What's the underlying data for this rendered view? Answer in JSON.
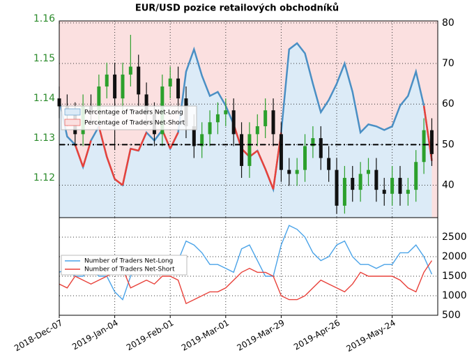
{
  "chart_data": [
    {
      "type": "candlestick",
      "title": "EUR/USD pozice retailových obchodníků",
      "x": [
        "2018-12-07",
        "2018-12-11",
        "2018-12-15",
        "2018-12-19",
        "2018-12-23",
        "2018-12-27",
        "2018-12-31",
        "2019-01-04",
        "2019-01-08",
        "2019-01-12",
        "2019-01-16",
        "2019-01-20",
        "2019-01-24",
        "2019-01-28",
        "2019-02-01",
        "2019-02-05",
        "2019-02-09",
        "2019-02-13",
        "2019-02-17",
        "2019-02-21",
        "2019-02-25",
        "2019-03-01",
        "2019-03-05",
        "2019-03-09",
        "2019-03-13",
        "2019-03-17",
        "2019-03-21",
        "2019-03-25",
        "2019-03-29",
        "2019-04-02",
        "2019-04-06",
        "2019-04-10",
        "2019-04-14",
        "2019-04-18",
        "2019-04-22",
        "2019-04-26",
        "2019-04-30",
        "2019-05-04",
        "2019-05-08",
        "2019-05-12",
        "2019-05-16",
        "2019-05-20",
        "2019-05-24",
        "2019-05-28",
        "2019-06-01",
        "2019-06-05",
        "2019-06-09",
        "2019-06-13"
      ],
      "open": [
        1.14,
        1.138,
        1.136,
        1.131,
        1.138,
        1.137,
        1.143,
        1.146,
        1.14,
        1.146,
        1.148,
        1.141,
        1.136,
        1.131,
        1.143,
        1.145,
        1.14,
        1.133,
        1.128,
        1.131,
        1.134,
        1.136,
        1.137,
        1.131,
        1.123,
        1.131,
        1.133,
        1.137,
        1.131,
        1.122,
        1.121,
        1.122,
        1.128,
        1.13,
        1.125,
        1.122,
        1.113,
        1.12,
        1.117,
        1.121,
        1.122,
        1.117,
        1.116,
        1.12,
        1.116,
        1.117,
        1.124,
        1.132
      ],
      "high": [
        1.143,
        1.141,
        1.139,
        1.141,
        1.141,
        1.146,
        1.149,
        1.149,
        1.149,
        1.156,
        1.151,
        1.144,
        1.139,
        1.146,
        1.148,
        1.148,
        1.143,
        1.136,
        1.134,
        1.137,
        1.139,
        1.14,
        1.14,
        1.134,
        1.134,
        1.136,
        1.14,
        1.14,
        1.134,
        1.125,
        1.125,
        1.131,
        1.133,
        1.133,
        1.128,
        1.125,
        1.123,
        1.123,
        1.124,
        1.125,
        1.125,
        1.12,
        1.123,
        1.123,
        1.12,
        1.127,
        1.135,
        1.135
      ],
      "low": [
        1.135,
        1.133,
        1.128,
        1.128,
        1.134,
        1.134,
        1.14,
        1.127,
        1.137,
        1.143,
        1.138,
        1.133,
        1.128,
        1.128,
        1.14,
        1.137,
        1.13,
        1.125,
        1.125,
        1.128,
        1.131,
        1.133,
        1.128,
        1.12,
        1.12,
        1.128,
        1.13,
        1.128,
        1.119,
        1.118,
        1.118,
        1.119,
        1.125,
        1.122,
        1.119,
        1.111,
        1.111,
        1.114,
        1.114,
        1.118,
        1.114,
        1.113,
        1.113,
        1.113,
        1.113,
        1.114,
        1.121,
        1.123
      ],
      "close": [
        1.138,
        1.136,
        1.131,
        1.138,
        1.137,
        1.143,
        1.146,
        1.14,
        1.146,
        1.148,
        1.141,
        1.136,
        1.131,
        1.143,
        1.145,
        1.14,
        1.133,
        1.128,
        1.131,
        1.134,
        1.136,
        1.137,
        1.131,
        1.123,
        1.131,
        1.133,
        1.137,
        1.131,
        1.122,
        1.121,
        1.122,
        1.128,
        1.13,
        1.125,
        1.122,
        1.113,
        1.12,
        1.117,
        1.121,
        1.122,
        1.117,
        1.116,
        1.12,
        1.116,
        1.117,
        1.124,
        1.132,
        1.126
      ],
      "up_color": "#2ca02c",
      "down_color": "#111111",
      "ylim": [
        1.11,
        1.1595
      ],
      "yticks": [
        1.12,
        1.13,
        1.14,
        1.15,
        1.16
      ],
      "ytick_color": "#2a8a2a",
      "y2lim": [
        32,
        80.5
      ],
      "y2ticks": [
        40,
        50,
        60,
        70,
        80
      ],
      "series": [
        {
          "name": "Percentage of Traders Net-Long",
          "color": "#4a8fc4",
          "axis": "y2",
          "values": [
            61,
            52,
            50,
            44.5,
            51,
            54.5,
            47,
            41.5,
            40,
            49,
            48.5,
            53,
            51,
            53.6,
            49,
            53,
            68,
            73.5,
            67,
            62,
            63,
            59.6,
            55,
            49,
            47,
            48.5,
            44,
            39,
            53,
            73.5,
            75,
            72.5,
            65,
            58,
            61,
            65,
            70,
            63,
            53,
            55,
            54.5,
            53.6,
            54.5,
            59.6,
            62,
            68,
            59.6,
            46
          ]
        }
      ],
      "fills": [
        {
          "name": "Percentage of Traders Net-Long",
          "color": "#dcebf7",
          "edge": "#4a8fc4"
        },
        {
          "name": "Percentage of Traders Net-Short",
          "color": "#fbe0e0",
          "edge": "#e8413a"
        }
      ],
      "hline": 50,
      "grid": true
    },
    {
      "type": "line",
      "xlim": [
        "2018-12-07",
        "2019-06-16"
      ],
      "xticks": [
        {
          "value": "2018-12-07",
          "label": "2018-Dec-07"
        },
        {
          "value": "2019-01-04",
          "label": "2019-Jan-04"
        },
        {
          "value": "2019-02-01",
          "label": "2019-Feb-01"
        },
        {
          "value": "2019-03-01",
          "label": "2019-Mar-01"
        },
        {
          "value": "2019-03-29",
          "label": "2019-Mar-29"
        },
        {
          "value": "2019-04-26",
          "label": "2019-Apr-26"
        },
        {
          "value": "2019-05-24",
          "label": "2019-May-24"
        }
      ],
      "y2lim": [
        500,
        3000
      ],
      "y2ticks": [
        500,
        1000,
        1500,
        2000,
        2500
      ],
      "series": [
        {
          "name": "Number of Traders Net-Long",
          "color": "#4aa3e8",
          "axis": "y2",
          "values": [
            1600,
            1700,
            1500,
            1500,
            1700,
            1500,
            1500,
            1100,
            900,
            1500,
            1900,
            1800,
            1900,
            2000,
            1800,
            1900,
            2400,
            2300,
            2100,
            1800,
            1800,
            1700,
            1600,
            2200,
            2300,
            1900,
            1500,
            1500,
            2300,
            2800,
            2700,
            2500,
            2100,
            1900,
            2000,
            2300,
            2400,
            2000,
            1800,
            1800,
            1700,
            1800,
            1800,
            2100,
            2100,
            2300,
            2000,
            1550
          ]
        },
        {
          "name": "Number of Traders Net-Short",
          "color": "#e8413a",
          "axis": "y2",
          "values": [
            1300,
            1200,
            1500,
            1400,
            1300,
            1400,
            1500,
            1600,
            1700,
            1200,
            1300,
            1400,
            1300,
            1500,
            1500,
            1400,
            800,
            900,
            1000,
            1100,
            1100,
            1200,
            1400,
            1600,
            1700,
            1600,
            1600,
            1500,
            1000,
            900,
            900,
            1000,
            1200,
            1400,
            1300,
            1200,
            1100,
            1300,
            1600,
            1500,
            1500,
            1500,
            1500,
            1400,
            1200,
            1100,
            1600,
            1900
          ]
        }
      ],
      "grid": true
    }
  ]
}
